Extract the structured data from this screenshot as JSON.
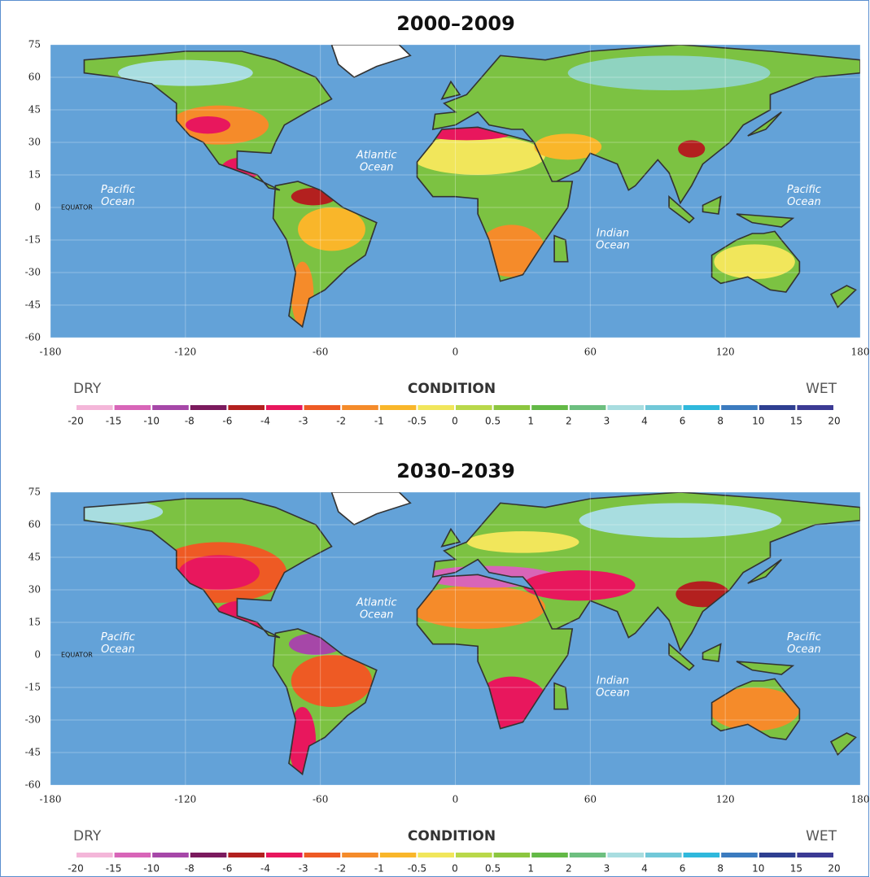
{
  "panels": [
    {
      "title": "2000–2009",
      "xlim": [
        -180,
        180
      ],
      "ylim": [
        -60,
        75
      ],
      "xticks": [
        -180,
        -120,
        -60,
        0,
        60,
        120,
        180
      ],
      "yticks": [
        75,
        60,
        45,
        30,
        15,
        0,
        -15,
        -30,
        -45,
        -60
      ],
      "ocean_labels": [
        [
          "Pacific",
          "Ocean"
        ],
        [
          "Atlantic",
          "Ocean"
        ],
        [
          "Indian",
          "Ocean"
        ],
        [
          "Pacific",
          "Ocean"
        ]
      ],
      "equator_label": "EQUATOR",
      "legend": {
        "dry": "DRY",
        "title": "CONDITION",
        "wet": "WET",
        "ticks": [
          -20,
          -15,
          -10,
          -8,
          -6,
          -4,
          -3,
          -2,
          -1,
          -0.5,
          0,
          0.5,
          1,
          2,
          3,
          4,
          6,
          8,
          10,
          15,
          20
        ],
        "colors": [
          "#f4b6d9",
          "#d865b8",
          "#a647a8",
          "#7b1a5e",
          "#b3201f",
          "#e8175d",
          "#ee5a24",
          "#f58b2a",
          "#f9b62a",
          "#f1e65b",
          "#b9d84a",
          "#8cc63f",
          "#63b946",
          "#6dbf7f",
          "#a8dde0",
          "#71c8d8",
          "#2fb8dc",
          "#3b7bbf",
          "#2e3f91",
          "#3b3a94"
        ]
      }
    },
    {
      "title": "2030–2039",
      "xlim": [
        -180,
        180
      ],
      "ylim": [
        -60,
        75
      ],
      "xticks": [
        -180,
        -120,
        -60,
        0,
        60,
        120,
        180
      ],
      "yticks": [
        75,
        60,
        45,
        30,
        15,
        0,
        -15,
        -30,
        -45,
        -60
      ],
      "ocean_labels": [
        [
          "Pacific",
          "Ocean"
        ],
        [
          "Atlantic",
          "Ocean"
        ],
        [
          "Indian",
          "Ocean"
        ],
        [
          "Pacific",
          "Ocean"
        ]
      ],
      "equator_label": "EQUATOR",
      "legend": {
        "dry": "DRY",
        "title": "CONDITION",
        "wet": "WET",
        "ticks": [
          -20,
          -15,
          -10,
          -8,
          -6,
          -4,
          -3,
          -2,
          -1,
          -0.5,
          0,
          0.5,
          1,
          2,
          3,
          4,
          6,
          8,
          10,
          15,
          20
        ],
        "colors": [
          "#f4b6d9",
          "#d865b8",
          "#a647a8",
          "#7b1a5e",
          "#b3201f",
          "#e8175d",
          "#ee5a24",
          "#f58b2a",
          "#f9b62a",
          "#f1e65b",
          "#b9d84a",
          "#8cc63f",
          "#63b946",
          "#6dbf7f",
          "#a8dde0",
          "#71c8d8",
          "#2fb8dc",
          "#3b7bbf",
          "#2e3f91",
          "#3b3a94"
        ]
      }
    }
  ]
}
